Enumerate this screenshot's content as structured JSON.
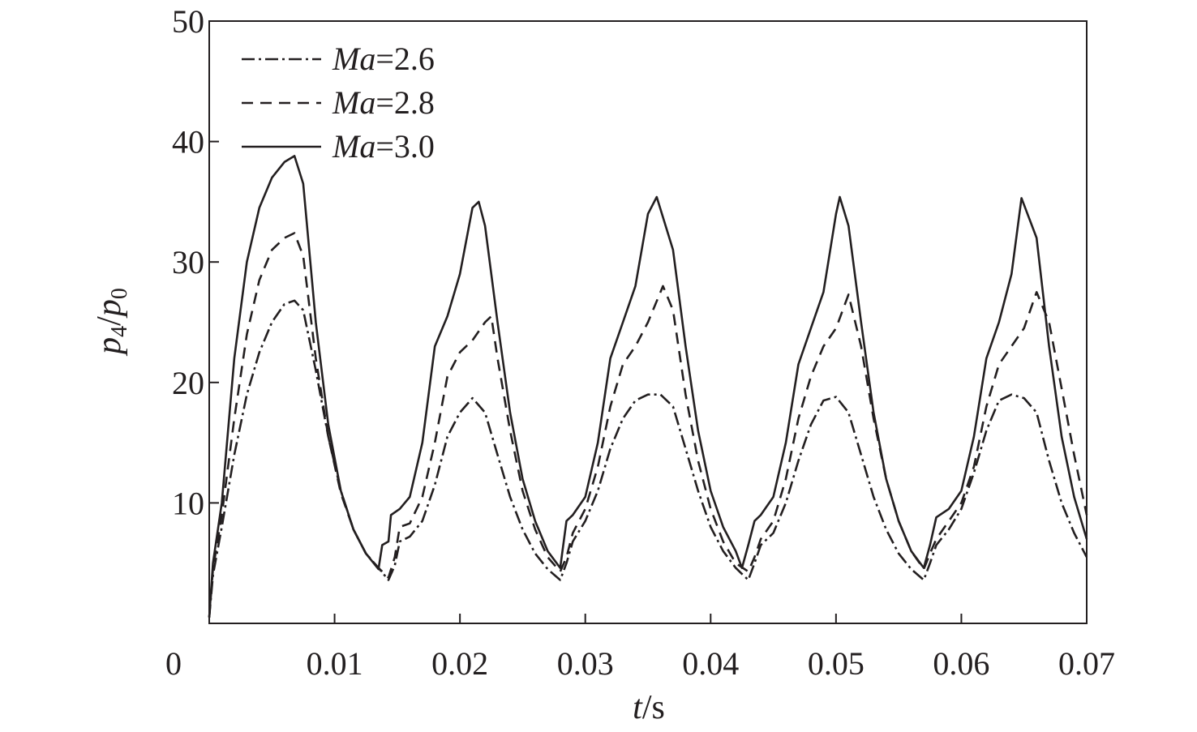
{
  "chart_data": {
    "type": "line",
    "x_label": {
      "var": "t",
      "unit": "/s"
    },
    "y_label": {
      "num_var": "p",
      "num_sub": "4",
      "sep": "/",
      "den_var": "p",
      "den_sub": "0"
    },
    "xlim": [
      0,
      0.07
    ],
    "ylim": [
      0,
      50
    ],
    "x_ticks": [
      "0",
      "0.01",
      "0.02",
      "0.03",
      "0.04",
      "0.05",
      "0.06",
      "0.07"
    ],
    "y_ticks": [
      "10",
      "20",
      "30",
      "40",
      "50"
    ],
    "legend_position": "top-left",
    "grid": false,
    "series": [
      {
        "name_var": "Ma",
        "name_val": "=2.6",
        "style": "dashdot",
        "points": [
          [
            0,
            0.5
          ],
          [
            0.0003,
            4
          ],
          [
            0.001,
            8
          ],
          [
            0.002,
            14
          ],
          [
            0.003,
            19
          ],
          [
            0.004,
            22.5
          ],
          [
            0.005,
            25
          ],
          [
            0.006,
            26.5
          ],
          [
            0.0068,
            26.8
          ],
          [
            0.0075,
            26
          ],
          [
            0.0085,
            21
          ],
          [
            0.0095,
            15.5
          ],
          [
            0.0105,
            11
          ],
          [
            0.0115,
            7.8
          ],
          [
            0.0125,
            5.8
          ],
          [
            0.0135,
            4.6
          ],
          [
            0.0143,
            3.6
          ],
          [
            0.0148,
            4.8
          ],
          [
            0.0152,
            6.8
          ],
          [
            0.016,
            7.2
          ],
          [
            0.017,
            8.5
          ],
          [
            0.018,
            11.5
          ],
          [
            0.019,
            15.5
          ],
          [
            0.02,
            17.5
          ],
          [
            0.021,
            18.7
          ],
          [
            0.022,
            17.5
          ],
          [
            0.023,
            14
          ],
          [
            0.024,
            10.5
          ],
          [
            0.025,
            7.8
          ],
          [
            0.026,
            5.8
          ],
          [
            0.027,
            4.5
          ],
          [
            0.028,
            3.6
          ],
          [
            0.0285,
            5
          ],
          [
            0.029,
            6.8
          ],
          [
            0.03,
            8.5
          ],
          [
            0.031,
            11
          ],
          [
            0.032,
            14.5
          ],
          [
            0.033,
            17
          ],
          [
            0.034,
            18.5
          ],
          [
            0.035,
            19
          ],
          [
            0.036,
            19
          ],
          [
            0.037,
            18
          ],
          [
            0.038,
            14.5
          ],
          [
            0.039,
            11
          ],
          [
            0.04,
            8
          ],
          [
            0.041,
            6
          ],
          [
            0.042,
            4.6
          ],
          [
            0.043,
            3.6
          ],
          [
            0.0435,
            5
          ],
          [
            0.044,
            6.5
          ],
          [
            0.045,
            7.5
          ],
          [
            0.046,
            10
          ],
          [
            0.047,
            13.5
          ],
          [
            0.048,
            16.5
          ],
          [
            0.049,
            18.5
          ],
          [
            0.05,
            18.8
          ],
          [
            0.051,
            17.5
          ],
          [
            0.052,
            14
          ],
          [
            0.053,
            10.5
          ],
          [
            0.054,
            7.8
          ],
          [
            0.055,
            5.8
          ],
          [
            0.056,
            4.5
          ],
          [
            0.057,
            3.6
          ],
          [
            0.0575,
            5
          ],
          [
            0.058,
            6.5
          ],
          [
            0.059,
            7.8
          ],
          [
            0.06,
            9.5
          ],
          [
            0.061,
            12.5
          ],
          [
            0.062,
            16
          ],
          [
            0.063,
            18.5
          ],
          [
            0.064,
            19
          ],
          [
            0.065,
            18.7
          ],
          [
            0.066,
            17.5
          ],
          [
            0.067,
            13.5
          ],
          [
            0.068,
            10
          ],
          [
            0.069,
            7.5
          ],
          [
            0.07,
            5.5
          ]
        ]
      },
      {
        "name_var": "Ma",
        "name_val": "=2.8",
        "style": "dashed",
        "points": [
          [
            0,
            0.5
          ],
          [
            0.0003,
            4.5
          ],
          [
            0.001,
            9
          ],
          [
            0.002,
            17
          ],
          [
            0.003,
            24
          ],
          [
            0.004,
            28.5
          ],
          [
            0.005,
            31
          ],
          [
            0.006,
            32
          ],
          [
            0.0068,
            32.4
          ],
          [
            0.0075,
            30.5
          ],
          [
            0.0085,
            22
          ],
          [
            0.0095,
            15.5
          ],
          [
            0.0105,
            10.8
          ],
          [
            0.0115,
            7.8
          ],
          [
            0.0125,
            5.8
          ],
          [
            0.0135,
            4.6
          ],
          [
            0.0143,
            3.8
          ],
          [
            0.0148,
            5.5
          ],
          [
            0.0152,
            8
          ],
          [
            0.016,
            8.3
          ],
          [
            0.017,
            10.5
          ],
          [
            0.018,
            15
          ],
          [
            0.019,
            20.5
          ],
          [
            0.02,
            22.5
          ],
          [
            0.021,
            23.5
          ],
          [
            0.022,
            25
          ],
          [
            0.0225,
            25.5
          ],
          [
            0.023,
            22
          ],
          [
            0.024,
            16
          ],
          [
            0.025,
            11
          ],
          [
            0.026,
            7.8
          ],
          [
            0.027,
            5.5
          ],
          [
            0.028,
            4.3
          ],
          [
            0.0285,
            5.5
          ],
          [
            0.029,
            7.5
          ],
          [
            0.03,
            9.5
          ],
          [
            0.031,
            13
          ],
          [
            0.032,
            18
          ],
          [
            0.033,
            21.5
          ],
          [
            0.034,
            23
          ],
          [
            0.035,
            25
          ],
          [
            0.0362,
            28
          ],
          [
            0.037,
            26
          ],
          [
            0.038,
            19
          ],
          [
            0.039,
            13.5
          ],
          [
            0.04,
            9.5
          ],
          [
            0.041,
            6.8
          ],
          [
            0.042,
            5
          ],
          [
            0.043,
            4.3
          ],
          [
            0.0435,
            5.5
          ],
          [
            0.044,
            7
          ],
          [
            0.045,
            8.5
          ],
          [
            0.046,
            12
          ],
          [
            0.047,
            17
          ],
          [
            0.048,
            20.5
          ],
          [
            0.049,
            23
          ],
          [
            0.05,
            24.5
          ],
          [
            0.051,
            27.3
          ],
          [
            0.052,
            23
          ],
          [
            0.053,
            17
          ],
          [
            0.054,
            12
          ],
          [
            0.055,
            8.5
          ],
          [
            0.056,
            6
          ],
          [
            0.057,
            4.5
          ],
          [
            0.0575,
            5.8
          ],
          [
            0.058,
            7
          ],
          [
            0.059,
            8.5
          ],
          [
            0.06,
            10
          ],
          [
            0.061,
            13
          ],
          [
            0.062,
            18
          ],
          [
            0.063,
            21.5
          ],
          [
            0.064,
            23
          ],
          [
            0.065,
            24.5
          ],
          [
            0.066,
            27.5
          ],
          [
            0.067,
            25
          ],
          [
            0.068,
            19.5
          ],
          [
            0.069,
            14
          ],
          [
            0.07,
            9
          ]
        ]
      },
      {
        "name_var": "Ma",
        "name_val": "=3.0",
        "style": "solid",
        "points": [
          [
            0,
            0.5
          ],
          [
            0.0003,
            5
          ],
          [
            0.001,
            10
          ],
          [
            0.002,
            22
          ],
          [
            0.003,
            30
          ],
          [
            0.004,
            34.5
          ],
          [
            0.005,
            37
          ],
          [
            0.006,
            38.3
          ],
          [
            0.0068,
            38.8
          ],
          [
            0.0075,
            36.5
          ],
          [
            0.0085,
            25
          ],
          [
            0.0095,
            16.5
          ],
          [
            0.0105,
            11
          ],
          [
            0.0115,
            7.8
          ],
          [
            0.0125,
            5.8
          ],
          [
            0.0135,
            4.5
          ],
          [
            0.0138,
            6.5
          ],
          [
            0.0143,
            6.8
          ],
          [
            0.0145,
            9
          ],
          [
            0.0152,
            9.5
          ],
          [
            0.016,
            10.5
          ],
          [
            0.017,
            15
          ],
          [
            0.018,
            23
          ],
          [
            0.019,
            25.5
          ],
          [
            0.02,
            29
          ],
          [
            0.021,
            34.5
          ],
          [
            0.0215,
            35
          ],
          [
            0.022,
            33
          ],
          [
            0.023,
            25
          ],
          [
            0.024,
            17.5
          ],
          [
            0.025,
            12
          ],
          [
            0.026,
            8.5
          ],
          [
            0.027,
            6
          ],
          [
            0.028,
            4.6
          ],
          [
            0.0285,
            8.5
          ],
          [
            0.029,
            9
          ],
          [
            0.03,
            10.5
          ],
          [
            0.031,
            15
          ],
          [
            0.032,
            22
          ],
          [
            0.033,
            25
          ],
          [
            0.034,
            28
          ],
          [
            0.035,
            34
          ],
          [
            0.0357,
            35.4
          ],
          [
            0.037,
            31
          ],
          [
            0.038,
            23
          ],
          [
            0.039,
            16
          ],
          [
            0.04,
            11
          ],
          [
            0.041,
            8
          ],
          [
            0.042,
            6
          ],
          [
            0.0425,
            4.6
          ],
          [
            0.043,
            6.5
          ],
          [
            0.0435,
            8.5
          ],
          [
            0.044,
            9
          ],
          [
            0.045,
            10.5
          ],
          [
            0.046,
            15
          ],
          [
            0.047,
            21.5
          ],
          [
            0.048,
            24.5
          ],
          [
            0.049,
            27.5
          ],
          [
            0.05,
            34
          ],
          [
            0.0503,
            35.4
          ],
          [
            0.051,
            33
          ],
          [
            0.052,
            25
          ],
          [
            0.053,
            17.5
          ],
          [
            0.054,
            12
          ],
          [
            0.055,
            8.5
          ],
          [
            0.056,
            6
          ],
          [
            0.057,
            4.6
          ],
          [
            0.0575,
            6.5
          ],
          [
            0.058,
            8.8
          ],
          [
            0.059,
            9.5
          ],
          [
            0.06,
            11
          ],
          [
            0.061,
            15.5
          ],
          [
            0.062,
            22
          ],
          [
            0.063,
            25
          ],
          [
            0.064,
            29
          ],
          [
            0.0648,
            35.3
          ],
          [
            0.066,
            32
          ],
          [
            0.067,
            23
          ],
          [
            0.068,
            15.5
          ],
          [
            0.069,
            10.5
          ],
          [
            0.07,
            7
          ]
        ]
      }
    ]
  }
}
